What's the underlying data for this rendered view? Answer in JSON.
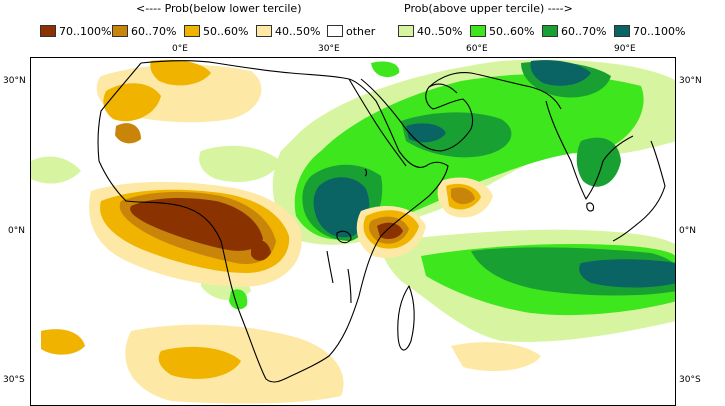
{
  "header": {
    "below_label": "<---- Prob(below lower tercile)",
    "above_label": "Prob(above upper tercile) ---->"
  },
  "legend": [
    {
      "label": "70..100%",
      "color": "#8b3300"
    },
    {
      "label": "60..70%",
      "color": "#c8850a"
    },
    {
      "label": "50..60%",
      "color": "#f0b400"
    },
    {
      "label": "40..50%",
      "color": "#fde9a5"
    },
    {
      "label": "other",
      "color": "#ffffff"
    },
    {
      "label": "40..50%",
      "color": "#d7f5a0"
    },
    {
      "label": "50..60%",
      "color": "#3ee61e"
    },
    {
      "label": "60..70%",
      "color": "#19a032"
    },
    {
      "label": "70..100%",
      "color": "#0a6464"
    }
  ],
  "axes": {
    "lon_labels": [
      "0°E",
      "30°E",
      "60°E",
      "90°E"
    ],
    "lat_labels": [
      "30°N",
      "0°N",
      "30°S"
    ]
  }
}
